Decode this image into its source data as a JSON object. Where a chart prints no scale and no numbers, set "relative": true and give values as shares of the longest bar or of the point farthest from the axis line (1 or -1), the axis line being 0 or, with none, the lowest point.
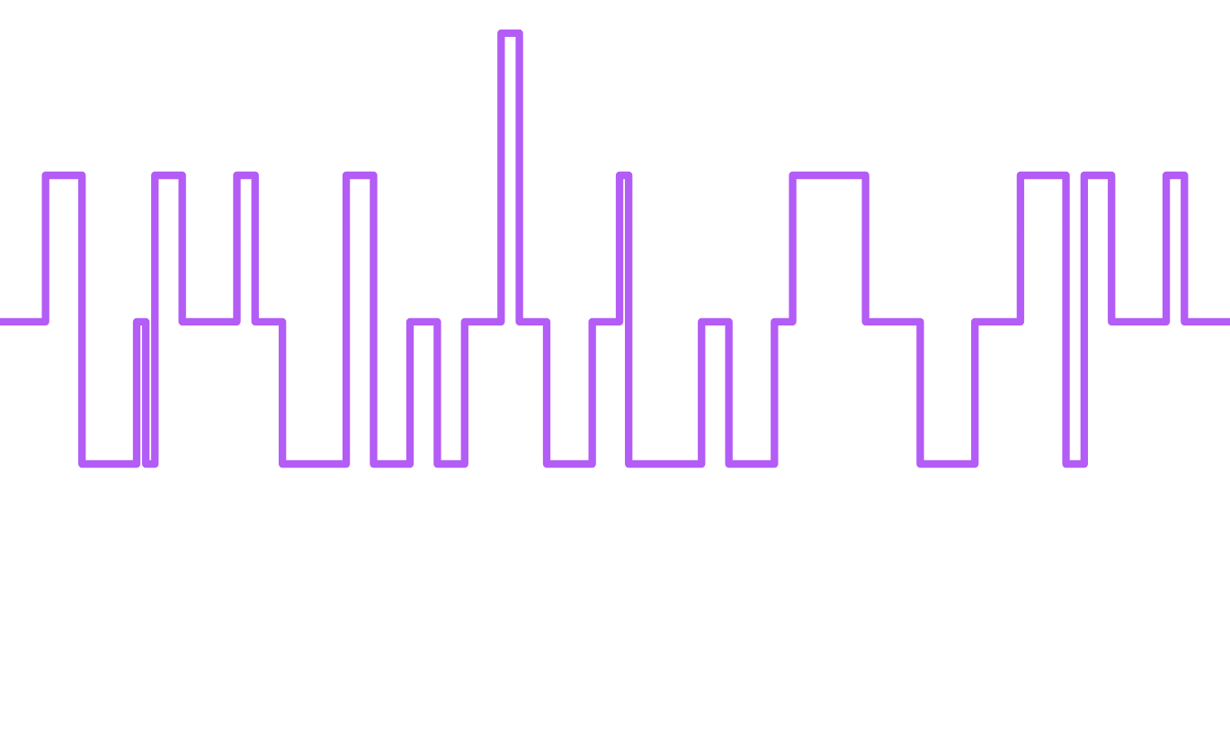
{
  "chart_data": {
    "type": "step",
    "relative": true,
    "categories": [
      null,
      null,
      null,
      null,
      null,
      null,
      null,
      null,
      null,
      null,
      null,
      null,
      null,
      null,
      null,
      null,
      null,
      null,
      null,
      null,
      null,
      null,
      null,
      null,
      null,
      null,
      null,
      null,
      null,
      null,
      null,
      null,
      null,
      null,
      null,
      null,
      null,
      null,
      null,
      null,
      null,
      null,
      null,
      null,
      null,
      null,
      null,
      null,
      null,
      null,
      null,
      null,
      null,
      null,
      null,
      null,
      null,
      null,
      null,
      null,
      null,
      null,
      null,
      null,
      null,
      null,
      null,
      null,
      null,
      null,
      null,
      null,
      null,
      null,
      null,
      null,
      null,
      null,
      null,
      null,
      null,
      null,
      null,
      null,
      null,
      null,
      null,
      null,
      null,
      null,
      null,
      null,
      null,
      null,
      null,
      null,
      null,
      null,
      null,
      null,
      null,
      null,
      null,
      null,
      null,
      null,
      null,
      null,
      null,
      null,
      null,
      null,
      null,
      null,
      null,
      null,
      null,
      null,
      null,
      null,
      null,
      null,
      null,
      null,
      null,
      null,
      null,
      null,
      null,
      null,
      null,
      null,
      null,
      null,
      null,
      null
    ],
    "series": [
      {
        "color": "#b35cf6",
        "values": [
          0.33,
          0.33,
          0.33,
          0.33,
          0.33,
          0.67,
          0.67,
          0.67,
          0.67,
          0,
          0,
          0,
          0,
          0,
          0,
          0.33,
          0,
          0.67,
          0.67,
          0.67,
          0.33,
          0.33,
          0.33,
          0.33,
          0.33,
          0.33,
          0.67,
          0.67,
          0.33,
          0.33,
          0.33,
          0,
          0,
          0,
          0,
          0,
          0,
          0,
          0.67,
          0.67,
          0.67,
          0,
          0,
          0,
          0,
          0.33,
          0.33,
          0.33,
          0,
          0,
          0,
          0.33,
          0.33,
          0.33,
          0.33,
          1,
          1,
          0.33,
          0.33,
          0.33,
          0,
          0,
          0,
          0,
          0,
          0.33,
          0.33,
          0.33,
          0.67,
          0,
          0,
          0,
          0,
          0,
          0,
          0,
          0,
          0.33,
          0.33,
          0.33,
          0,
          0,
          0,
          0,
          0,
          0.33,
          0.33,
          0.67,
          0.67,
          0.67,
          0.67,
          0.67,
          0.67,
          0.67,
          0.67,
          0.33,
          0.33,
          0.33,
          0.33,
          0.33,
          0.33,
          0,
          0,
          0,
          0,
          0,
          0,
          0.33,
          0.33,
          0.33,
          0.33,
          0.33,
          0.67,
          0.67,
          0.67,
          0.67,
          0.67,
          0,
          0,
          0.67,
          0.67,
          0.67,
          0.33,
          0.33,
          0.33,
          0.33,
          0.33,
          0.33,
          0.67,
          0.67,
          0.33,
          0.33,
          0.33,
          0.33,
          0.33,
          0.33
        ]
      }
    ],
    "grid": false,
    "marker": "none",
    "line_style": "solid"
  }
}
